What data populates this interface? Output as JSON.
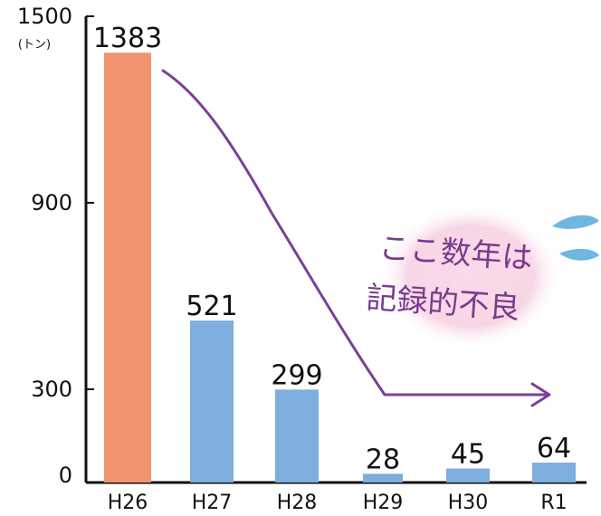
{
  "chart_data": {
    "type": "bar",
    "title": "",
    "xlabel": "",
    "ylabel": "",
    "unit": "(トン)",
    "ylim": [
      0,
      1500
    ],
    "yticks": [
      0,
      300,
      900,
      1500
    ],
    "categories": [
      "H26",
      "H27",
      "H28",
      "H29",
      "H30",
      "R1"
    ],
    "values": [
      1383,
      521,
      299,
      28,
      45,
      64
    ],
    "highlight_category": "H26",
    "annotation_lines": [
      "ここ数年は",
      "記録的不良"
    ],
    "colors": {
      "highlight": "#f0956f",
      "bar": "#7eaedd",
      "arrow": "#7b3f99",
      "callout_bg": "#f7d7e6",
      "drop": "#6fb6e0",
      "axis": "#111111"
    },
    "grid": false,
    "legend": "none"
  }
}
